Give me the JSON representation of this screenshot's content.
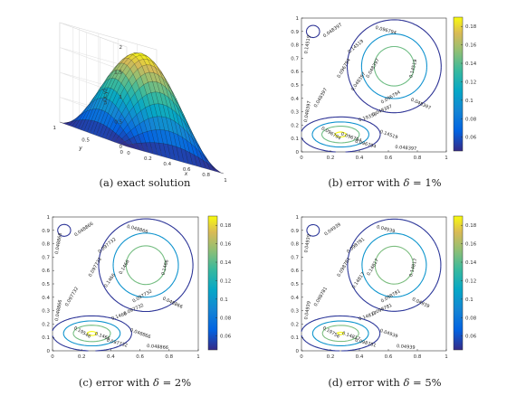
{
  "figure": {
    "panels": [
      {
        "id": "a",
        "caption": "(a) exact solution",
        "caption_prefix": "(a) exact solution",
        "caption_symbol": "",
        "caption_suffix": ""
      },
      {
        "id": "b",
        "caption": "(b) error with δ = 1%",
        "caption_prefix": "(b) error with ",
        "caption_symbol": "δ",
        "caption_suffix": " = 1%"
      },
      {
        "id": "c",
        "caption": "(c) error with δ = 2%",
        "caption_prefix": "(c) error with ",
        "caption_symbol": "δ",
        "caption_suffix": " = 2%"
      },
      {
        "id": "d",
        "caption": "(d) error with δ = 5%",
        "caption_prefix": "(d) error with ",
        "caption_symbol": "δ",
        "caption_suffix": " = 5%"
      }
    ]
  },
  "chart_data": [
    {
      "type": "surface",
      "panel": "a",
      "zlabel": "u(x,y)",
      "xlabel": "x",
      "ylabel": "y",
      "z_ticks": [
        "0",
        "0.5",
        "1",
        "1.5",
        "2"
      ],
      "x_ticks": [
        "0",
        "0.2",
        "0.4",
        "0.6",
        "0.8",
        "1"
      ],
      "y_ticks": [
        "1",
        "0.5",
        "0"
      ],
      "zlim": [
        0,
        2
      ],
      "peak_value": 1.9,
      "function": "u(x,y) ≈ peak · sin(πx) · sin(πy)",
      "colormap": "parula"
    },
    {
      "type": "contour",
      "panel": "b",
      "x_ticks": [
        "0",
        "0.2",
        "0.4",
        "0.6",
        "0.8",
        "1"
      ],
      "y_ticks": [
        "0",
        "0.1",
        "0.2",
        "0.3",
        "0.4",
        "0.5",
        "0.6",
        "0.7",
        "0.8",
        "0.9",
        "1"
      ],
      "colorbar_ticks": [
        "0.06",
        "0.08",
        "0.1",
        "0.12",
        "0.14",
        "0.16",
        "0.18"
      ],
      "clim": [
        0.045,
        0.19
      ],
      "level_labels": [
        "0.048397",
        "0.096794",
        "0.14519",
        "0.19359"
      ],
      "label_texts": [
        "0.048397",
        "0.096794",
        "0.14519",
        "0.048397",
        "0.14519",
        "0.096794",
        "0.048397",
        "0.048397",
        "0.096794",
        "0.14519",
        "0.048397",
        "0.048397",
        "0.096794",
        "0.19359",
        "0.048397",
        "0.14519",
        "0.096794",
        "0.048397",
        "0.096794"
      ]
    },
    {
      "type": "contour",
      "panel": "c",
      "x_ticks": [
        "0",
        "0.2",
        "0.4",
        "0.6",
        "0.8",
        "1"
      ],
      "y_ticks": [
        "0",
        "0.1",
        "0.2",
        "0.3",
        "0.4",
        "0.5",
        "0.6",
        "0.7",
        "0.8",
        "0.9",
        "1"
      ],
      "colorbar_ticks": [
        "0.06",
        "0.08",
        "0.1",
        "0.12",
        "0.14",
        "0.16",
        "0.18"
      ],
      "clim": [
        0.045,
        0.19
      ],
      "level_labels": [
        "0.048866",
        "0.097732",
        "0.1466",
        "0.19546"
      ],
      "label_texts": [
        "0.048866",
        "0.048866",
        "0.097732",
        "0.1466",
        "0.1466",
        "0.097732",
        "0.048866",
        "0.1466",
        "0.097732",
        "0.048866",
        "0.048866",
        "0.097732",
        "0.19546",
        "0.1466",
        "0.097732",
        "0.048866",
        "0.1466",
        "0.048866",
        "0.097732"
      ]
    },
    {
      "type": "contour",
      "panel": "d",
      "x_ticks": [
        "0",
        "0.2",
        "0.4",
        "0.6",
        "0.8",
        "1"
      ],
      "y_ticks": [
        "0",
        "0.1",
        "0.2",
        "0.3",
        "0.4",
        "0.5",
        "0.6",
        "0.7",
        "0.8",
        "0.9",
        "1"
      ],
      "colorbar_ticks": [
        "0.06",
        "0.08",
        "0.1",
        "0.12",
        "0.14",
        "0.16",
        "0.18"
      ],
      "clim": [
        0.045,
        0.19
      ],
      "level_labels": [
        "0.04939",
        "0.098781",
        "0.14817",
        "0.19756"
      ],
      "label_texts": [
        "0.04939",
        "0.04939",
        "0.098781",
        "0.14817",
        "0.14817",
        "0.098781",
        "0.04939",
        "0.14817",
        "0.098781",
        "0.04939",
        "0.04939",
        "0.098781",
        "0.19756",
        "0.14817",
        "0.098781",
        "0.04939",
        "0.14817",
        "0.04939",
        "0.098781"
      ]
    }
  ]
}
